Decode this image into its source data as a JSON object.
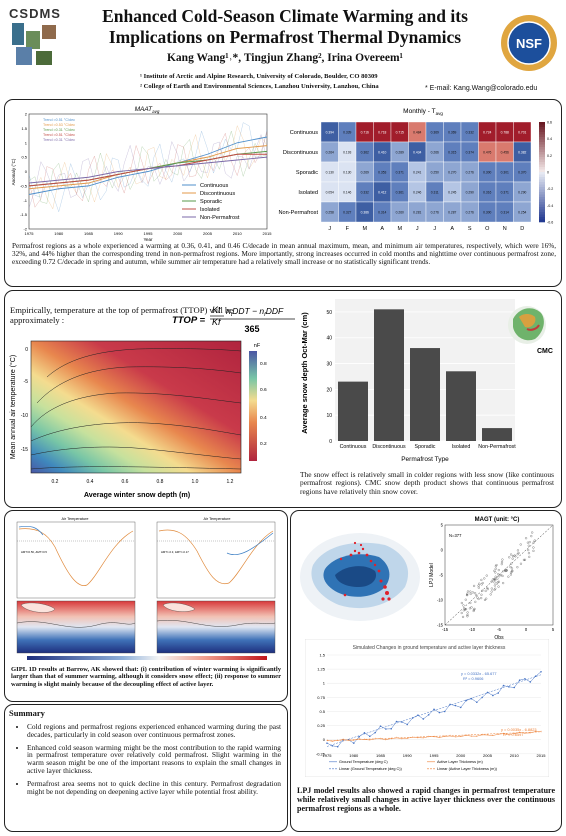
{
  "header": {
    "title_line1": "Enhanced Cold-Season Climate Warming and its",
    "title_line2": "Implications on Permafrost Thermal Dynamics",
    "authors": "Kang Wang¹˒*, Tingjun Zhang², Irina Overeem¹",
    "affiliation1": "¹ Institute of Arctic and Alpine Research, University of Colorado, Boulder, CO 80309",
    "affiliation2": "² College of Earth and Environmental Sciences, Lanzhou University, Lanzhou, China",
    "email": "* E-mail: Kang.Wang@colorado.edu",
    "logo_left_text": "CSDMS",
    "logo_right_text": "NSF"
  },
  "panel1": {
    "line_chart_title": "MAAT",
    "line_chart_title_sub": "avg",
    "line_chart_ylabel": "Anomaly (°C)",
    "line_chart_xlabel": "Year",
    "trend_labels": [
      "Trend =0.51 °C/dec",
      "Trend =0.53 °C/dec",
      "Trend =0.31 °C/dec",
      "Trend =0.51 °C/dec",
      "Trend =0.31 °C/dec"
    ],
    "heatmap_title": "Monthly - T",
    "heatmap_title_sub": "avg",
    "paragraph": "Permafrost regions as a whole experienced a warming at 0.36, 0.41, and 0.46 C/decade in mean annual maximum, mean, and minimum air temperatures, respectively, which were 16%, 32%, and 44% higher than the corresponding trend in non-permafrost regions. More importantly, strong increases occurred in cold months and nighttime over continuous permafrost zone, exceeding 0.72 C/decade in spring and autumn, while summer air temperature had a relatively small increase or no statistically significant trends."
  },
  "panel2": {
    "formula_intro": "Empirically, temperature at the top of permafrost (TTOP) will be approximately :",
    "contour_ylabel": "Mean annual air temperature (°C)",
    "contour_xlabel": "Average winter snow depth (m)",
    "contour_cbar_title": "nF",
    "bar_ylabel": "Average snow depth Oct-Mar (cm)",
    "bar_xlabel": "Permafrost Type",
    "map_label": "CMC",
    "paragraph": "The snow effect is relatively small in colder regions with less snow (like continuous permafrost regions). CMC snow depth product shows that continuous permafrost regions have relatively thin snow cover."
  },
  "panel3": {
    "gipl_title_left": "Air Temperature",
    "gipl_title_right": "Air Temperature",
    "gipl_caption": "GIPL 1D results at Barrow, AK showed that: (i) contribution of winter warming is significantly larger than that of summer warming, although it considers snow effect; (ii) response to summer warming is slight mainly because of the decoupling effect of active layer."
  },
  "panel4": {
    "scatter_title": "MAGT (unit: °C)",
    "scatter_n": "N=377",
    "scatter_ylabel": "LPJ Model",
    "scatter_xlabel": "Obs",
    "ts_title": "Simulated Changes in ground temperature and active layer thickness",
    "ts_eq1": "y = 0.0332x - 65.677",
    "ts_r1": "R² = 0.9606",
    "ts_eq2": "y = 0.0035x - 6.8823",
    "ts_r2": "R² = 0.6597",
    "ts_legend": [
      "Ground Temperature (deg C)",
      "Active Layer Thickness (m)",
      "Linear (Ground Temperature (deg C))",
      "Linear (Active Layer Thickness (m))"
    ],
    "paragraph": "LPJ model results also showed a rapid changes in permafrost temperature while relatively small changes in active layer thickness over the continuous permafrost regions as a whole."
  },
  "summary": {
    "heading": "Summary",
    "items": [
      "Cold regions and permafrost regions experienced enhanced warming during the past decades, particularly in cold season over continuous permafrost zones.",
      "Enhanced cold season warming might be the most contribution to the rapid warming in permafrost temperature over relatively cold permafrost. Slight warming in the warm season might be one of the important reasons to explain the small changes in active layer thickness.",
      "Permafrost area seems not to quick decline in this century. Permafrost degradation might be not depending on deepening active layer while potential frost ability."
    ]
  },
  "chart_data": [
    {
      "type": "line",
      "title": "MAAT avg",
      "xlabel": "Year",
      "ylabel": "Anomaly (°C)",
      "x": [
        1975,
        1980,
        1985,
        1990,
        1995,
        2000,
        2005,
        2010,
        2015
      ],
      "xticks": [
        "1975",
        "1980",
        "1985",
        "1990",
        "1995",
        "2000",
        "2005",
        "2010",
        "2015"
      ],
      "ylim": [
        -2,
        2
      ],
      "yticks": [
        "2",
        "1.5",
        "1",
        "0.5",
        "0",
        "-0.5",
        "-1",
        "-1.5",
        "-2"
      ],
      "series": [
        {
          "name": "Continuous",
          "color": "#4f8fcb",
          "values": [
            -0.8,
            -0.6,
            -0.5,
            -0.2,
            0.0,
            0.3,
            0.6,
            1.0,
            1.2
          ]
        },
        {
          "name": "Discontinuous",
          "color": "#e39a4a",
          "values": [
            -0.6,
            -0.5,
            -0.4,
            -0.1,
            0.1,
            0.3,
            0.5,
            0.8,
            0.9
          ]
        },
        {
          "name": "Sporadic",
          "color": "#5a9a4b",
          "values": [
            -0.5,
            -0.4,
            -0.3,
            -0.1,
            0.1,
            0.3,
            0.4,
            0.6,
            0.7
          ]
        },
        {
          "name": "Isolated",
          "color": "#c24c46",
          "values": [
            -0.5,
            -0.4,
            -0.3,
            -0.1,
            0.1,
            0.2,
            0.4,
            0.6,
            0.6
          ]
        },
        {
          "name": "Non-Permafrost",
          "color": "#7b6aa8",
          "values": [
            -0.4,
            -0.3,
            -0.2,
            0.0,
            0.1,
            0.2,
            0.3,
            0.4,
            0.5
          ]
        }
      ]
    },
    {
      "type": "heatmap",
      "title": "Monthly - T avg",
      "columns": [
        "J",
        "F",
        "M",
        "A",
        "M",
        "J",
        "J",
        "A",
        "S",
        "O",
        "N",
        "D"
      ],
      "rows": [
        "Continuous",
        "Discontinuous",
        "Sporadic",
        "Isolated",
        "Non-Permafrost"
      ],
      "values": [
        [
          0.394,
          0.339,
          0.716,
          0.718,
          0.715,
          0.484,
          0.369,
          0.369,
          0.332,
          0.724,
          0.788,
          0.701
        ],
        [
          0.264,
          0.193,
          0.362,
          0.41,
          0.289,
          0.434,
          0.266,
          0.315,
          0.374,
          0.476,
          0.456,
          0.382
        ],
        [
          0.13,
          0.13,
          0.269,
          0.353,
          0.371,
          0.241,
          0.25,
          0.27,
          0.276,
          0.3,
          0.301,
          0.37
        ],
        [
          0.054,
          0.146,
          0.332,
          0.412,
          0.361,
          0.246,
          0.311,
          0.245,
          0.29,
          0.316,
          0.371,
          0.29
        ],
        [
          0.258,
          0.327,
          0.386,
          0.314,
          0.26,
          0.281,
          0.276,
          0.287,
          0.276,
          0.3,
          0.314,
          0.254
        ]
      ],
      "colorbar": [
        "-0.6",
        "-0.4",
        "-0.2",
        "0",
        "0.2",
        "0.4",
        "0.6"
      ]
    },
    {
      "type": "heatmap",
      "title": "TTOP contour",
      "xlabel": "Average winter snow depth (m)",
      "ylabel": "Mean annual air temperature (°C)",
      "xticks": [
        "0.2",
        "0.4",
        "0.6",
        "0.8",
        "1.0",
        "1.2"
      ],
      "yticks": [
        "0",
        "-5",
        "-10",
        "-15"
      ],
      "colorbar_title": "nF",
      "colorbar": [
        "0.8",
        "0.6",
        "0.4",
        "0.2"
      ]
    },
    {
      "type": "bar",
      "xlabel": "Permafrost Type",
      "ylabel": "Average snow depth Oct-Mar (cm)",
      "categories": [
        "Continuous",
        "Discontinuous",
        "Sporadic",
        "Isolated",
        "Non-Permafrost"
      ],
      "values": [
        23,
        51,
        36,
        27,
        5
      ],
      "ylim": [
        0,
        55
      ],
      "yticks": [
        "0",
        "10",
        "20",
        "30",
        "40",
        "50"
      ]
    },
    {
      "type": "scatter",
      "title": "MAGT (unit: °C)",
      "xlabel": "Obs",
      "ylabel": "LPJ Model",
      "xlim": [
        -15,
        5
      ],
      "ylim": [
        -15,
        5
      ],
      "xticks": [
        "-15",
        "-10",
        "-5",
        "0",
        "5"
      ],
      "yticks": [
        "5",
        "0",
        "-5",
        "-10",
        "-15"
      ]
    },
    {
      "type": "line",
      "title": "Simulated Changes in ground temperature and active layer thickness",
      "x": [
        1975,
        1980,
        1985,
        1990,
        1995,
        2000,
        2005,
        2010,
        2015
      ],
      "xticks": [
        "1975",
        "1980",
        "1985",
        "1990",
        "1995",
        "2000",
        "2005",
        "2010",
        "2015"
      ],
      "ylim": [
        -0.2,
        1.5
      ],
      "yticks": [
        "1.5",
        "1.25",
        "1",
        "0.75",
        "0.5",
        "0.25",
        "0",
        "-0.25"
      ],
      "series": [
        {
          "name": "Ground Temperature (deg C)",
          "color": "#4472c4",
          "values": [
            -0.12,
            0.0,
            0.18,
            0.33,
            0.48,
            0.63,
            0.78,
            0.98,
            1.15
          ]
        },
        {
          "name": "Active Layer Thickness (m)",
          "color": "#ed7d31",
          "values": [
            -0.02,
            0.0,
            0.01,
            0.03,
            0.05,
            0.06,
            0.08,
            0.11,
            0.14
          ]
        }
      ]
    }
  ]
}
